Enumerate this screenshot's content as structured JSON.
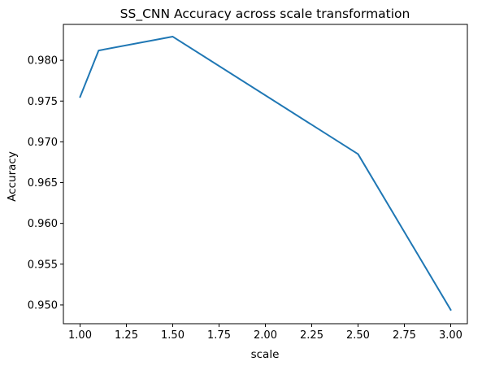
{
  "chart_data": {
    "type": "line",
    "title": "SS_CNN Accuracy across scale transformation",
    "xlabel": "scale",
    "ylabel": "Accuracy",
    "xlim": [
      0.91,
      3.09
    ],
    "ylim": [
      0.9477,
      0.9844
    ],
    "xticks": [
      1.0,
      1.25,
      1.5,
      1.75,
      2.0,
      2.25,
      2.5,
      2.75,
      3.0
    ],
    "xtick_labels": [
      "1.00",
      "1.25",
      "1.50",
      "1.75",
      "2.00",
      "2.25",
      "2.50",
      "2.75",
      "3.00"
    ],
    "yticks": [
      0.95,
      0.955,
      0.96,
      0.965,
      0.97,
      0.975,
      0.98
    ],
    "ytick_labels": [
      "0.950",
      "0.955",
      "0.960",
      "0.965",
      "0.970",
      "0.975",
      "0.980"
    ],
    "grid": false,
    "series": [
      {
        "color": "#1f77b4",
        "x": [
          1.0,
          1.1,
          1.5,
          2.5,
          3.0
        ],
        "y": [
          0.9755,
          0.9812,
          0.9829,
          0.9685,
          0.9494
        ]
      }
    ]
  }
}
